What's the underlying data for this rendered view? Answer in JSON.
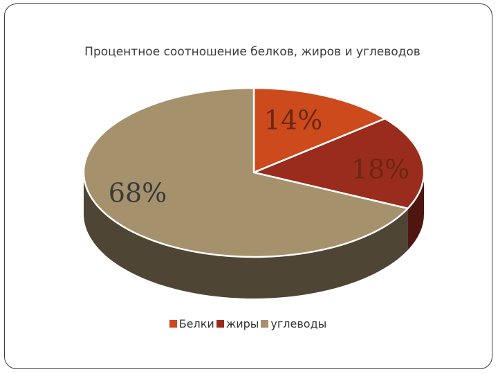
{
  "chart_data": {
    "type": "pie",
    "title": "Процентное соотношение белков, жиров и углеводов",
    "categories": [
      "Белки",
      "жиры",
      "углеводы"
    ],
    "values": [
      14,
      18,
      68
    ],
    "data_labels": [
      "14%",
      "18%",
      "68%"
    ],
    "colors": [
      "#cc4a1c",
      "#9a2c1e",
      "#a6916d"
    ],
    "side_colors": [
      "#7a2a10",
      "#4d1710",
      "#4f4535"
    ],
    "label_colors": [
      "#6b2710",
      "#6b2710",
      "#3a3a3a"
    ],
    "legend_position": "bottom",
    "style": "3d"
  }
}
